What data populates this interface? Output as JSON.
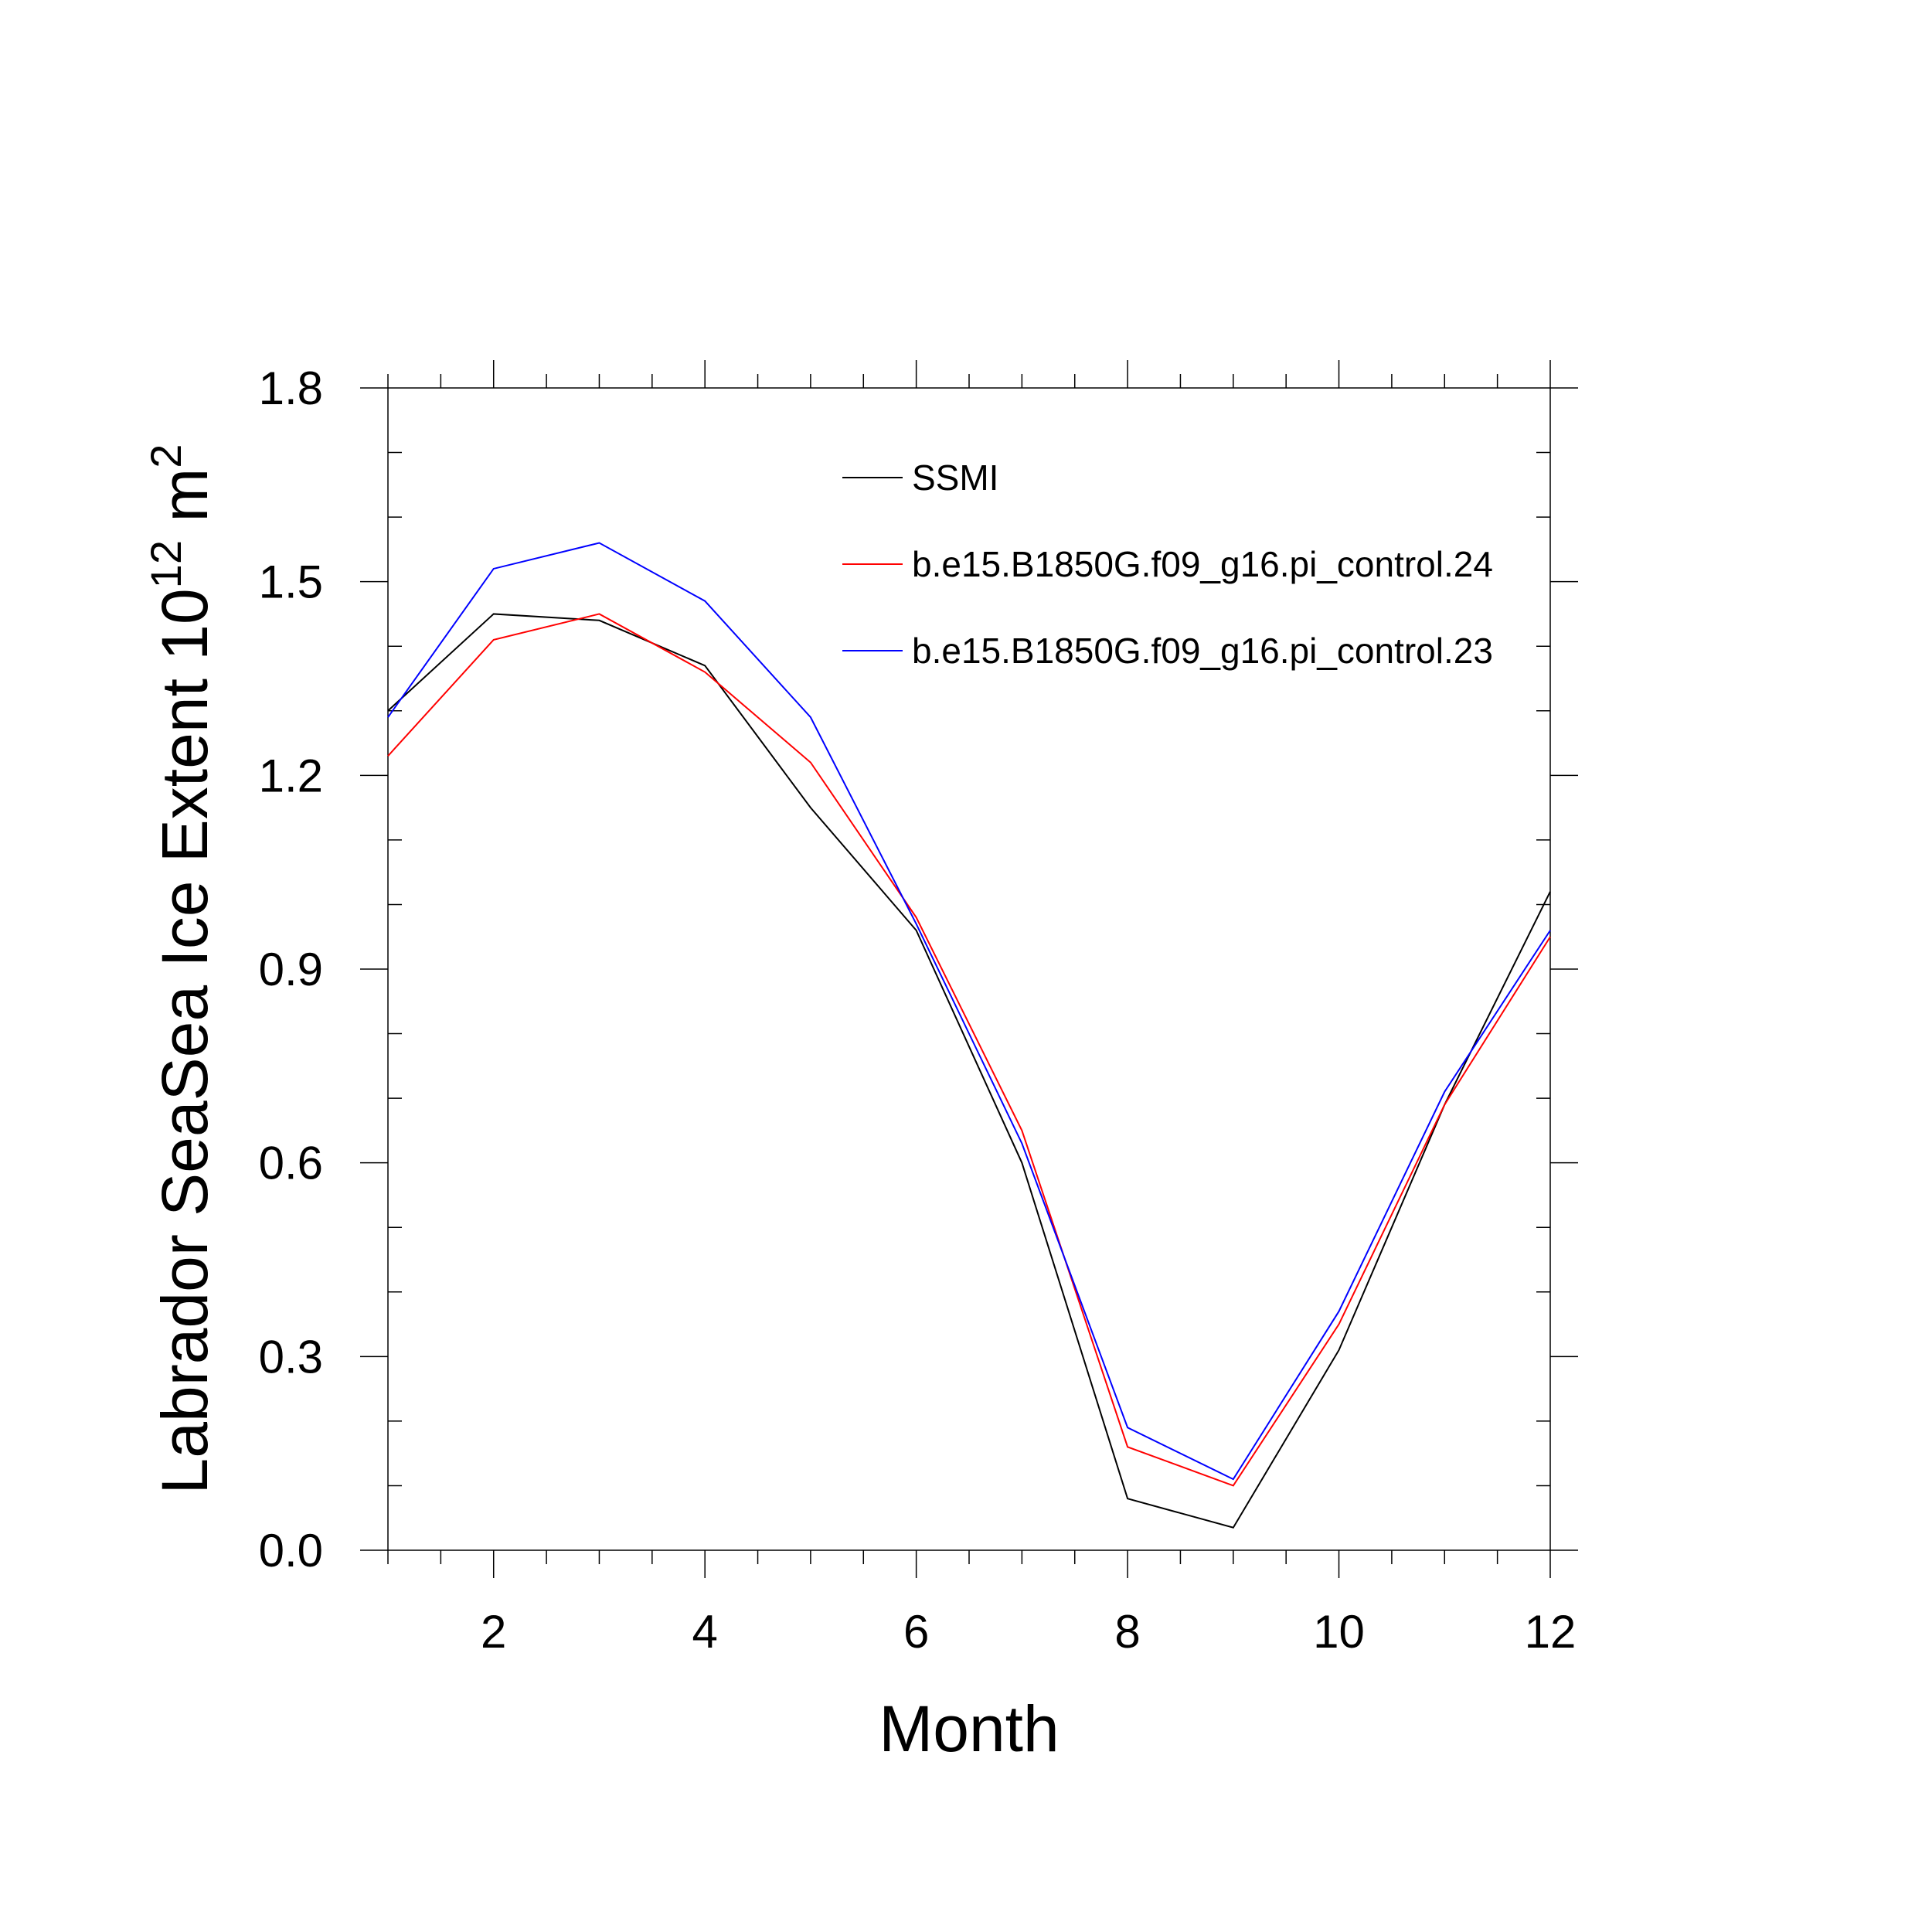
{
  "chart_data": {
    "type": "line",
    "xlabel": "Month",
    "ylabel": {
      "text": "Labrador SeaSea Ice Extent 10",
      "exp1": "12",
      "unit": " m",
      "exp2": "2"
    },
    "xlim": [
      1,
      12
    ],
    "ylim": [
      0.0,
      1.8
    ],
    "xticks": [
      2,
      4,
      6,
      8,
      10,
      12
    ],
    "xtick_labels": [
      "2",
      "4",
      "6",
      "8",
      "10",
      "12"
    ],
    "yticks": [
      0.0,
      0.3,
      0.6,
      0.9,
      1.2,
      1.5,
      1.8
    ],
    "ytick_labels": [
      "0.0",
      "0.3",
      "0.6",
      "0.9",
      "1.2",
      "1.5",
      "1.8"
    ],
    "grid": false,
    "legend_position": "top-right",
    "x": [
      1,
      2,
      3,
      4,
      5,
      6,
      7,
      8,
      9,
      10,
      11,
      12
    ],
    "series": [
      {
        "name": "SSMI",
        "color": "#000000",
        "values": [
          1.3,
          1.45,
          1.44,
          1.37,
          1.15,
          0.96,
          0.6,
          0.08,
          0.035,
          0.31,
          0.69,
          1.02
        ]
      },
      {
        "name": "b.e15.B1850G.f09_g16.pi_control.24",
        "color": "#ff0000",
        "values": [
          1.23,
          1.41,
          1.45,
          1.36,
          1.22,
          0.98,
          0.65,
          0.16,
          0.1,
          0.35,
          0.69,
          0.95
        ]
      },
      {
        "name": "b.e15.B1850G.f09_g16.pi_control.23",
        "color": "#0000ff",
        "values": [
          1.29,
          1.52,
          1.56,
          1.47,
          1.29,
          0.97,
          0.63,
          0.19,
          0.11,
          0.37,
          0.71,
          0.96
        ]
      }
    ]
  }
}
